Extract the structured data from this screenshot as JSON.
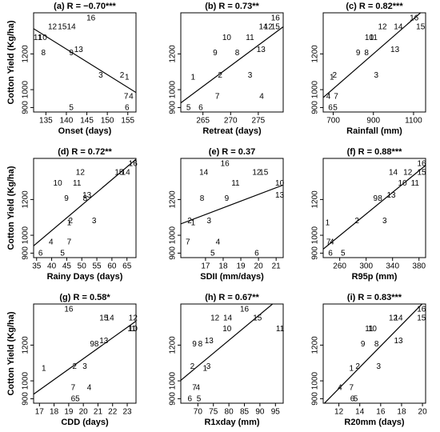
{
  "chart_data": [
    {
      "type": "scatter",
      "title": "(a) R = −0.70***",
      "x_label": "Onset (days)",
      "y_label": "Cotton Yield (Kg/ha)",
      "labels": [
        "1",
        "2",
        "3",
        "4",
        "5",
        "6",
        "7",
        "8",
        "9",
        "10",
        "11",
        "12",
        "13",
        "14",
        "15",
        "16"
      ],
      "x": [
        154.8,
        153.6,
        148.4,
        155.8,
        141.2,
        154.8,
        154.6,
        134.4,
        141.2,
        134.2,
        133.0,
        136.6,
        143.0,
        141.2,
        139.0,
        146.0
      ],
      "y": [
        1067,
        1080,
        1080,
        960,
        898,
        898,
        960,
        1204,
        1204,
        1289,
        1289,
        1351,
        1222,
        1351,
        1351,
        1400
      ],
      "xlim": [
        132,
        157
      ],
      "ylim": [
        875,
        1430
      ],
      "xticks": [
        135,
        140,
        145,
        150,
        155
      ],
      "yticks": [
        900,
        1000,
        1200
      ],
      "color": "#000000",
      "trendline": true
    },
    {
      "type": "scatter",
      "title": "(b) R = 0.73**",
      "x_label": "Retreat (days)",
      "labels": [
        "1",
        "2",
        "3",
        "4",
        "5",
        "6",
        "7",
        "8",
        "9",
        "10",
        "11",
        "12",
        "13",
        "14",
        "15",
        "16"
      ],
      "x": [
        263.2,
        268.1,
        273.5,
        275.6,
        262.4,
        264.6,
        267.6,
        271.2,
        267.2,
        269.3,
        273.5,
        276.8,
        275.5,
        275.9,
        278.1,
        278.1
      ],
      "y": [
        1067,
        1080,
        1080,
        960,
        898,
        898,
        960,
        1204,
        1204,
        1289,
        1289,
        1351,
        1222,
        1351,
        1351,
        1400
      ],
      "xlim": [
        261,
        279.5
      ],
      "ylim": [
        875,
        1430
      ],
      "xticks": [
        265,
        270,
        275
      ],
      "yticks": [
        900,
        1000,
        1200
      ],
      "color": "#000000",
      "trendline": true
    },
    {
      "type": "scatter",
      "title": "(c) R = 0.82***",
      "x_label": "Rainfall (mm)",
      "labels": [
        "1",
        "2",
        "3",
        "4",
        "5",
        "6",
        "7",
        "8",
        "9",
        "10",
        "11",
        "12",
        "13",
        "14",
        "15",
        "16"
      ],
      "x": [
        693,
        707,
        914,
        676,
        710,
        686,
        714,
        866,
        824,
        879,
        900,
        945,
        1007,
        1024,
        1135,
        1103
      ],
      "y": [
        1067,
        1080,
        1080,
        960,
        898,
        898,
        960,
        1204,
        1204,
        1289,
        1289,
        1351,
        1222,
        1351,
        1351,
        1400
      ],
      "xlim": [
        650,
        1160
      ],
      "ylim": [
        875,
        1430
      ],
      "xticks": [
        700,
        900,
        1100
      ],
      "yticks": [
        900,
        1000,
        1200
      ],
      "color": "#000000",
      "trendline": true
    },
    {
      "type": "scatter",
      "title": "(d) R = 0.72**",
      "x_label": "Rainy Days (days)",
      "y_label": "Cotton Yield (Kg/ha)",
      "labels": [
        "1",
        "2",
        "3",
        "4",
        "5",
        "6",
        "7",
        "8",
        "9",
        "10",
        "11",
        "12",
        "13",
        "14",
        "15",
        "16"
      ],
      "x": [
        45.8,
        46.3,
        54.1,
        39.8,
        43.6,
        36.3,
        45.8,
        51.1,
        44.9,
        42.0,
        48.4,
        49.5,
        51.7,
        64.6,
        62.4,
        67.0
      ],
      "y": [
        1067,
        1080,
        1080,
        960,
        898,
        898,
        960,
        1204,
        1204,
        1289,
        1289,
        1351,
        1222,
        1351,
        1351,
        1400
      ],
      "xlim": [
        34,
        68
      ],
      "ylim": [
        875,
        1430
      ],
      "xticks": [
        35,
        40,
        45,
        50,
        55,
        60,
        65
      ],
      "yticks": [
        900,
        1000,
        1200
      ],
      "color": "#000000",
      "trendline": true
    },
    {
      "type": "scatter",
      "title": "(e) R = 0.37",
      "x_label": "SDII (mm/days)",
      "labels": [
        "1",
        "2",
        "3",
        "4",
        "5",
        "6",
        "7",
        "8",
        "9",
        "10",
        "11",
        "12",
        "13",
        "14",
        "15",
        "16"
      ],
      "x": [
        16.3,
        16.1,
        17.2,
        17.7,
        17.4,
        19.9,
        16.0,
        16.8,
        18.2,
        21.2,
        18.7,
        19.9,
        21.2,
        16.9,
        20.3,
        18.1
      ],
      "y": [
        1067,
        1080,
        1080,
        960,
        898,
        898,
        960,
        1204,
        1204,
        1289,
        1289,
        1351,
        1222,
        1351,
        1351,
        1400
      ],
      "xlim": [
        15.6,
        21.4
      ],
      "ylim": [
        875,
        1430
      ],
      "xticks": [
        17,
        18,
        19,
        20,
        21
      ],
      "yticks": [
        900,
        1000,
        1200
      ],
      "color": "#000000",
      "trendline": true
    },
    {
      "type": "scatter",
      "title": "(f) R = 0.88***",
      "x_label": "R95p (mm)",
      "labels": [
        "1",
        "2",
        "3",
        "4",
        "5",
        "6",
        "7",
        "8",
        "9",
        "10",
        "11",
        "12",
        "13",
        "14",
        "15",
        "16"
      ],
      "x": [
        241.5,
        286,
        328,
        248,
        265,
        246,
        243,
        321,
        314,
        355,
        374,
        363,
        338,
        341,
        384,
        384
      ],
      "y": [
        1067,
        1080,
        1080,
        960,
        898,
        898,
        960,
        1204,
        1204,
        1289,
        1289,
        1351,
        1222,
        1351,
        1351,
        1400
      ],
      "xlim": [
        235,
        390
      ],
      "ylim": [
        875,
        1430
      ],
      "xticks": [
        260,
        300,
        340,
        380
      ],
      "yticks": [
        900,
        1000,
        1200
      ],
      "color": "#000000",
      "trendline": true
    },
    {
      "type": "scatter",
      "title": "(g) R = 0.58*",
      "x_label": "CDD (days)",
      "y_label": "Cotton Yield (Kg/ha)",
      "labels": [
        "1",
        "2",
        "3",
        "4",
        "5",
        "6",
        "7",
        "8",
        "9",
        "10",
        "11",
        "12",
        "13",
        "14",
        "15",
        "16"
      ],
      "x": [
        17.3,
        19.4,
        20.1,
        20.4,
        19.6,
        19.3,
        19.3,
        20.9,
        20.6,
        23.4,
        23.3,
        23.4,
        21.4,
        21.8,
        21.4,
        19.0
      ],
      "y": [
        1067,
        1080,
        1080,
        960,
        898,
        898,
        960,
        1204,
        1204,
        1289,
        1289,
        1351,
        1222,
        1351,
        1351,
        1400
      ],
      "xlim": [
        16.6,
        23.6
      ],
      "ylim": [
        875,
        1430
      ],
      "xticks": [
        17,
        18,
        19,
        20,
        21,
        22,
        23
      ],
      "yticks": [
        900,
        1000,
        1200
      ],
      "color": "#000000",
      "trendline": true
    },
    {
      "type": "scatter",
      "title": "(h) R = 0.67**",
      "x_label": "R1xday (mm)",
      "labels": [
        "1",
        "2",
        "3",
        "4",
        "5",
        "6",
        "7",
        "8",
        "9",
        "10",
        "11",
        "12",
        "13",
        "14",
        "15",
        "16"
      ],
      "x": [
        72.3,
        68.2,
        73.4,
        70.0,
        70.3,
        67.4,
        68.9,
        70.8,
        68.9,
        79.4,
        96.5,
        75.5,
        73.6,
        79.6,
        89.2,
        85.0
      ],
      "y": [
        1067,
        1080,
        1080,
        960,
        898,
        898,
        960,
        1204,
        1204,
        1289,
        1289,
        1351,
        1222,
        1351,
        1351,
        1400
      ],
      "xlim": [
        64.5,
        97.5
      ],
      "ylim": [
        875,
        1430
      ],
      "xticks": [
        70,
        75,
        80,
        85,
        90,
        95
      ],
      "yticks": [
        900,
        1000,
        1200
      ],
      "color": "#000000",
      "trendline": true
    },
    {
      "type": "scatter",
      "title": "(i) R = 0.83***",
      "x_label": "R20mm (days)",
      "labels": [
        "1",
        "2",
        "3",
        "4",
        "5",
        "6",
        "7",
        "8",
        "9",
        "10",
        "11",
        "12",
        "13",
        "14",
        "15",
        "16"
      ],
      "x": [
        13.2,
        13.8,
        15.8,
        12.1,
        13.6,
        13.3,
        13.2,
        15.6,
        14.3,
        15.2,
        14.9,
        17.2,
        17.7,
        17.7,
        19.9,
        19.9
      ],
      "y": [
        1067,
        1080,
        1080,
        960,
        898,
        898,
        960,
        1204,
        1204,
        1289,
        1289,
        1351,
        1222,
        1351,
        1351,
        1400
      ],
      "xlim": [
        10.5,
        20.3
      ],
      "ylim": [
        875,
        1430
      ],
      "xticks": [
        12,
        14,
        16,
        18,
        20
      ],
      "yticks": [
        900,
        1000,
        1200
      ],
      "color": "#000000",
      "trendline": true
    }
  ]
}
